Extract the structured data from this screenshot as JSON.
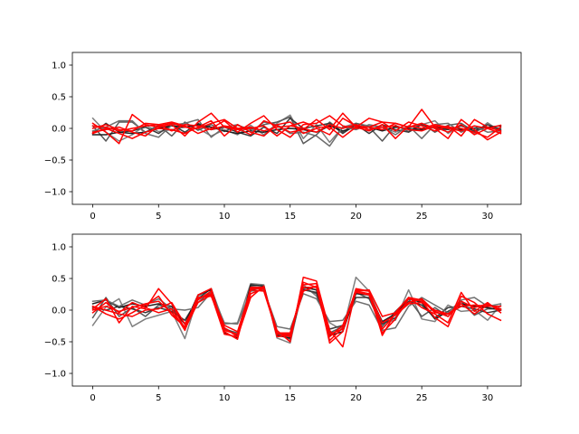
{
  "chart_data": [
    {
      "type": "line",
      "title": "",
      "xlabel": "",
      "ylabel": "",
      "xlim": [
        -1.55,
        32.55
      ],
      "ylim": [
        -1.2,
        1.2
      ],
      "xticks": [
        0,
        5,
        10,
        15,
        20,
        25,
        30
      ],
      "yticks": [
        -1.0,
        -0.5,
        0.0,
        0.5,
        1.0
      ],
      "xtick_labels": [
        "0",
        "5",
        "10",
        "15",
        "20",
        "25",
        "30"
      ],
      "ytick_labels": [
        "−1.0",
        "−0.5",
        "0.0",
        "0.5",
        "1.0"
      ],
      "grid": false,
      "x": [
        0,
        1,
        2,
        3,
        4,
        5,
        6,
        7,
        8,
        9,
        10,
        11,
        12,
        13,
        14,
        15,
        16,
        17,
        18,
        19,
        20,
        21,
        22,
        23,
        24,
        25,
        26,
        27,
        28,
        29,
        30,
        31
      ],
      "series": [
        {
          "color": "#808080",
          "values": [
            0.16,
            -0.06,
            -0.2,
            -0.1,
            0.05,
            -0.05,
            -0.02,
            0.02,
            0.0,
            -0.12,
            -0.02,
            -0.1,
            0.05,
            -0.1,
            0.08,
            0.21,
            -0.16,
            0.06,
            -0.22,
            0.02,
            0.08,
            0.04,
            0.02,
            -0.06,
            0.02,
            0.06,
            0.12,
            -0.08,
            0.05,
            -0.08,
            0.09,
            -0.05
          ]
        },
        {
          "color": "#595959",
          "values": [
            0.04,
            -0.2,
            0.1,
            0.1,
            -0.06,
            0.05,
            -0.12,
            0.1,
            -0.03,
            0.06,
            -0.05,
            0.05,
            -0.02,
            0.06,
            0.1,
            0.18,
            -0.24,
            -0.1,
            0.1,
            -0.06,
            0.08,
            0.02,
            -0.2,
            0.05,
            -0.05,
            0.08,
            -0.06,
            0.05,
            0.08,
            -0.05,
            0.02,
            0.0
          ]
        },
        {
          "color": "#3a3a3a",
          "values": [
            -0.08,
            0.08,
            -0.06,
            -0.04,
            0.02,
            -0.08,
            0.06,
            -0.06,
            0.08,
            -0.02,
            0.02,
            -0.06,
            -0.12,
            0.02,
            -0.08,
            0.16,
            0.0,
            0.04,
            0.08,
            -0.08,
            0.06,
            -0.08,
            0.06,
            -0.02,
            -0.06,
            0.06,
            0.0,
            -0.02,
            0.04,
            -0.04,
            0.06,
            -0.02
          ]
        },
        {
          "color": "#1e1e1e",
          "values": [
            -0.1,
            -0.1,
            -0.06,
            -0.08,
            -0.06,
            0.0,
            0.04,
            0.02,
            0.06,
            0.02,
            -0.04,
            -0.08,
            -0.04,
            -0.06,
            -0.02,
            0.0,
            -0.02,
            -0.06,
            0.04,
            -0.04,
            0.02,
            0.02,
            -0.04,
            0.02,
            0.0,
            -0.02,
            0.02,
            0.0,
            -0.02,
            0.0,
            0.02,
            0.04
          ]
        },
        {
          "color": "#6e6e6e",
          "values": [
            -0.04,
            0.02,
            0.12,
            0.12,
            -0.08,
            -0.14,
            0.05,
            0.08,
            0.14,
            -0.14,
            0.02,
            0.06,
            -0.06,
            0.1,
            0.06,
            -0.08,
            -0.06,
            -0.12,
            -0.28,
            0.02,
            -0.02,
            0.06,
            0.02,
            -0.1,
            0.04,
            -0.16,
            0.06,
            0.08,
            -0.06,
            0.04,
            -0.06,
            -0.04
          ]
        },
        {
          "color": "#ff0000",
          "values": [
            0.08,
            -0.06,
            -0.24,
            0.22,
            0.06,
            0.02,
            0.06,
            -0.12,
            0.1,
            0.24,
            0.02,
            -0.02,
            0.0,
            0.04,
            -0.12,
            0.04,
            0.1,
            0.02,
            0.02,
            -0.14,
            0.02,
            0.16,
            0.1,
            0.08,
            0.02,
            0.3,
            0.02,
            -0.06,
            0.06,
            -0.1,
            0.0,
            0.05
          ]
        },
        {
          "color": "#ff0000",
          "values": [
            0.0,
            0.06,
            -0.02,
            -0.04,
            0.08,
            0.06,
            0.1,
            0.04,
            -0.08,
            0.0,
            0.12,
            -0.06,
            0.08,
            0.2,
            -0.02,
            -0.14,
            0.06,
            0.08,
            0.2,
            0.04,
            0.0,
            0.02,
            0.1,
            -0.04,
            0.1,
            0.04,
            -0.04,
            0.04,
            -0.12,
            0.14,
            0.02,
            -0.04
          ]
        },
        {
          "color": "#ff0000",
          "values": [
            -0.06,
            -0.02,
            0.02,
            -0.06,
            -0.12,
            0.04,
            0.08,
            0.02,
            0.0,
            0.08,
            0.14,
            0.0,
            -0.1,
            0.12,
            0.04,
            -0.06,
            -0.02,
            0.14,
            -0.02,
            0.24,
            0.02,
            -0.04,
            0.06,
            -0.16,
            0.04,
            0.0,
            0.06,
            0.02,
            0.0,
            -0.06,
            -0.14,
            0.02
          ]
        },
        {
          "color": "#ff0000",
          "values": [
            0.04,
            0.02,
            -0.04,
            0.0,
            0.04,
            0.06,
            -0.04,
            0.06,
            0.04,
            -0.02,
            0.04,
            0.0,
            0.02,
            -0.04,
            0.02,
            0.04,
            0.0,
            -0.06,
            0.06,
            0.0,
            0.06,
            -0.02,
            0.02,
            0.04,
            -0.02,
            -0.04,
            0.04,
            0.0,
            -0.04,
            0.04,
            0.0,
            -0.08
          ]
        },
        {
          "color": "#ff0000",
          "values": [
            -0.08,
            0.0,
            -0.08,
            -0.16,
            -0.06,
            0.0,
            -0.02,
            -0.08,
            0.02,
            0.12,
            -0.12,
            0.06,
            -0.06,
            -0.12,
            0.06,
            0.1,
            -0.08,
            0.0,
            -0.1,
            0.16,
            0.04,
            0.02,
            -0.02,
            0.08,
            0.02,
            0.08,
            0.0,
            -0.16,
            0.14,
            -0.02,
            -0.18,
            -0.06
          ]
        }
      ]
    },
    {
      "type": "line",
      "title": "",
      "xlabel": "",
      "ylabel": "",
      "xlim": [
        -1.55,
        32.55
      ],
      "ylim": [
        -1.2,
        1.2
      ],
      "xticks": [
        0,
        5,
        10,
        15,
        20,
        25,
        30
      ],
      "yticks": [
        -1.0,
        -0.5,
        0.0,
        0.5,
        1.0
      ],
      "xtick_labels": [
        "0",
        "5",
        "10",
        "15",
        "20",
        "25",
        "30"
      ],
      "ytick_labels": [
        "−1.0",
        "−0.5",
        "0.0",
        "0.5",
        "1.0"
      ],
      "grid": false,
      "x": [
        0,
        1,
        2,
        3,
        4,
        5,
        6,
        7,
        8,
        9,
        10,
        11,
        12,
        13,
        14,
        15,
        16,
        17,
        18,
        19,
        20,
        21,
        22,
        23,
        24,
        25,
        26,
        27,
        28,
        29,
        30,
        31
      ],
      "series": [
        {
          "color": "#808080",
          "values": [
            -0.24,
            0.05,
            0.18,
            -0.26,
            -0.14,
            -0.08,
            -0.02,
            -0.45,
            0.22,
            0.34,
            -0.22,
            -0.2,
            0.42,
            0.4,
            -0.44,
            -0.52,
            0.4,
            0.22,
            -0.2,
            -0.32,
            0.52,
            0.3,
            -0.2,
            -0.16,
            0.32,
            -0.14,
            -0.18,
            0.08,
            -0.02,
            0.0,
            -0.16,
            0.08
          ]
        },
        {
          "color": "#595959",
          "values": [
            -0.12,
            0.2,
            -0.1,
            0.04,
            -0.1,
            0.08,
            0.02,
            -0.22,
            0.12,
            0.3,
            -0.3,
            -0.36,
            0.38,
            0.34,
            -0.38,
            -0.46,
            0.34,
            0.26,
            -0.36,
            -0.26,
            0.28,
            0.18,
            -0.26,
            -0.02,
            0.18,
            -0.1,
            0.04,
            -0.1,
            0.14,
            -0.08,
            0.02,
            0.02
          ]
        },
        {
          "color": "#3a3a3a",
          "values": [
            0.04,
            0.0,
            0.06,
            0.02,
            -0.04,
            0.04,
            -0.02,
            -0.16,
            0.18,
            0.34,
            -0.28,
            -0.4,
            0.32,
            0.36,
            -0.36,
            -0.4,
            0.32,
            0.28,
            -0.3,
            -0.24,
            0.2,
            0.2,
            -0.22,
            -0.12,
            0.14,
            0.08,
            -0.12,
            0.04,
            0.06,
            0.02,
            -0.04,
            0.0
          ]
        },
        {
          "color": "#1e1e1e",
          "values": [
            0.1,
            0.16,
            0.04,
            0.1,
            0.06,
            0.1,
            0.06,
            -0.22,
            0.24,
            0.32,
            -0.36,
            -0.44,
            0.4,
            0.38,
            -0.4,
            -0.44,
            0.36,
            0.32,
            -0.4,
            -0.34,
            0.26,
            0.24,
            -0.18,
            -0.06,
            0.18,
            0.12,
            -0.14,
            -0.02,
            0.1,
            0.06,
            0.04,
            0.0
          ]
        },
        {
          "color": "#6e6e6e",
          "values": [
            0.14,
            0.16,
            0.06,
            0.16,
            0.08,
            0.18,
            0.02,
            0.0,
            0.04,
            0.28,
            -0.2,
            -0.22,
            0.3,
            0.32,
            -0.26,
            -0.3,
            0.26,
            0.18,
            -0.18,
            -0.16,
            0.14,
            0.08,
            -0.32,
            -0.28,
            0.06,
            0.2,
            0.08,
            -0.04,
            0.16,
            0.2,
            0.06,
            0.1
          ]
        },
        {
          "color": "#ff0000",
          "values": [
            0.02,
            0.18,
            -0.2,
            0.06,
            0.02,
            0.34,
            0.1,
            -0.3,
            0.12,
            0.24,
            -0.38,
            -0.42,
            0.26,
            0.34,
            -0.32,
            -0.5,
            0.52,
            0.46,
            -0.32,
            -0.58,
            0.32,
            0.3,
            -0.4,
            -0.04,
            0.2,
            0.04,
            -0.06,
            -0.2,
            0.28,
            -0.02,
            0.12,
            -0.04
          ]
        },
        {
          "color": "#ff0000",
          "values": [
            0.06,
            -0.06,
            -0.14,
            -0.04,
            0.08,
            0.22,
            -0.08,
            -0.26,
            0.18,
            0.26,
            -0.24,
            -0.34,
            0.32,
            0.3,
            -0.36,
            -0.42,
            0.44,
            0.36,
            -0.48,
            -0.28,
            0.28,
            0.24,
            -0.36,
            -0.14,
            0.18,
            0.14,
            -0.12,
            -0.26,
            0.22,
            0.12,
            -0.06,
            -0.16
          ]
        },
        {
          "color": "#ff0000",
          "values": [
            -0.04,
            0.12,
            -0.04,
            0.12,
            0.04,
            -0.04,
            0.02,
            -0.32,
            0.2,
            0.22,
            -0.28,
            -0.42,
            0.2,
            0.38,
            -0.42,
            -0.4,
            0.4,
            0.42,
            -0.52,
            -0.34,
            0.34,
            0.3,
            -0.3,
            -0.06,
            0.12,
            0.18,
            -0.02,
            -0.1,
            0.14,
            0.04,
            0.1,
            0.0
          ]
        },
        {
          "color": "#ff0000",
          "values": [
            0.06,
            0.0,
            -0.06,
            -0.1,
            0.0,
            0.02,
            0.12,
            -0.22,
            0.16,
            0.3,
            -0.32,
            -0.38,
            0.34,
            0.34,
            -0.38,
            -0.38,
            0.3,
            0.38,
            -0.42,
            -0.24,
            0.3,
            0.26,
            -0.2,
            -0.08,
            0.1,
            0.12,
            0.0,
            -0.06,
            0.1,
            -0.06,
            0.08,
            0.02
          ]
        },
        {
          "color": "#ff0000",
          "values": [
            0.0,
            0.06,
            -0.02,
            0.04,
            0.1,
            0.14,
            -0.04,
            -0.28,
            0.24,
            0.34,
            -0.34,
            -0.46,
            0.36,
            0.36,
            -0.36,
            -0.36,
            0.36,
            0.36,
            -0.38,
            -0.3,
            0.3,
            0.32,
            -0.1,
            -0.04,
            0.2,
            0.16,
            -0.04,
            -0.06,
            0.06,
            0.08,
            0.06,
            0.06
          ]
        }
      ]
    }
  ]
}
